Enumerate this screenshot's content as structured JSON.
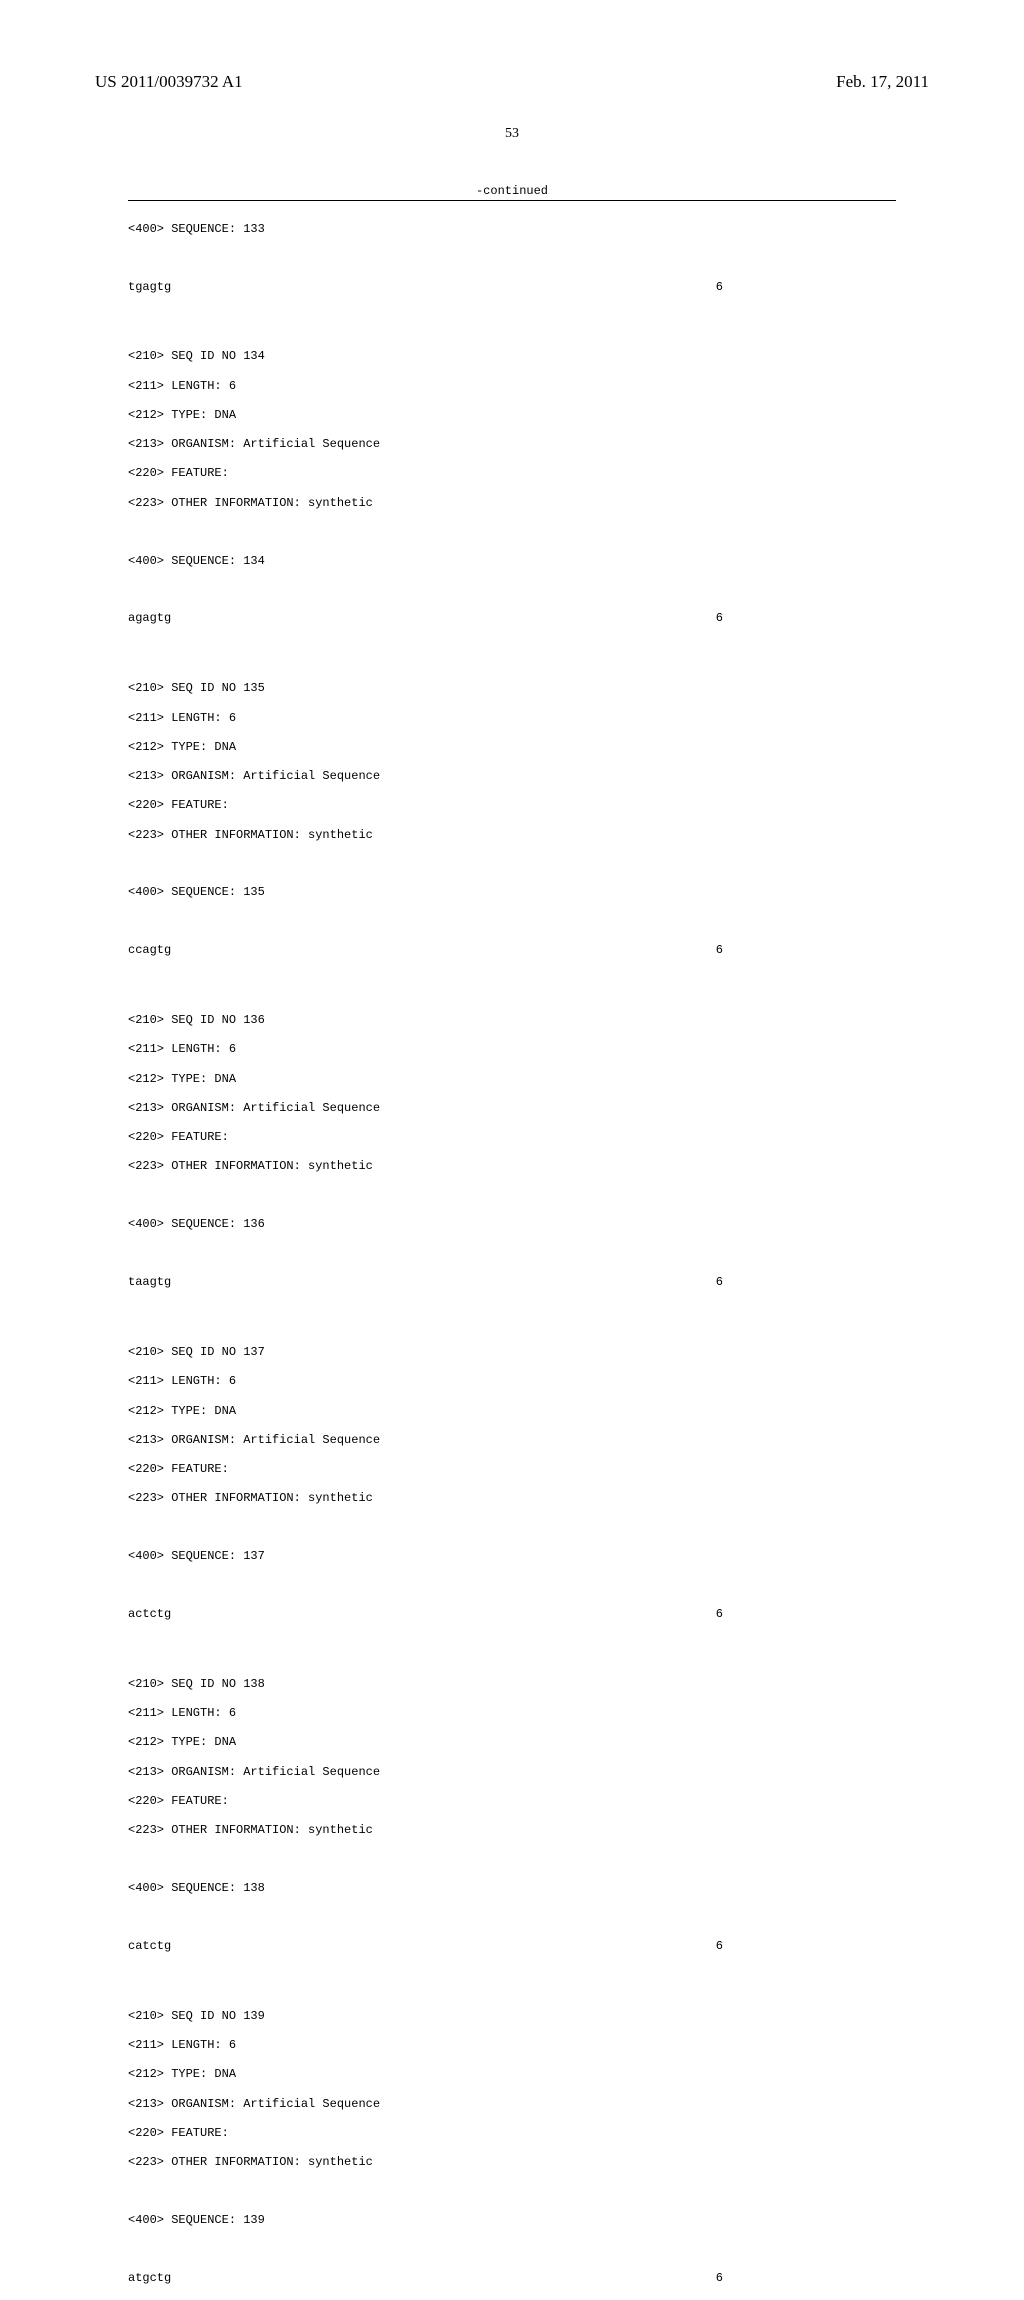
{
  "header": {
    "pub_number": "US 2011/0039732 A1",
    "pub_date": "Feb. 17, 2011"
  },
  "page_number": "53",
  "continued_label": "-continued",
  "entries": [
    {
      "pre_seq400": "<400> SEQUENCE: 133",
      "sequence": "tgagtg",
      "seq_len": "6",
      "header": [
        "<210> SEQ ID NO 134",
        "<211> LENGTH: 6",
        "<212> TYPE: DNA",
        "<213> ORGANISM: Artificial Sequence",
        "<220> FEATURE:",
        "<223> OTHER INFORMATION: synthetic"
      ],
      "seq400": "<400> SEQUENCE: 134",
      "next_sequence": "agagtg",
      "next_seq_len": "6"
    },
    {
      "header": [
        "<210> SEQ ID NO 135",
        "<211> LENGTH: 6",
        "<212> TYPE: DNA",
        "<213> ORGANISM: Artificial Sequence",
        "<220> FEATURE:",
        "<223> OTHER INFORMATION: synthetic"
      ],
      "seq400": "<400> SEQUENCE: 135",
      "next_sequence": "ccagtg",
      "next_seq_len": "6"
    },
    {
      "header": [
        "<210> SEQ ID NO 136",
        "<211> LENGTH: 6",
        "<212> TYPE: DNA",
        "<213> ORGANISM: Artificial Sequence",
        "<220> FEATURE:",
        "<223> OTHER INFORMATION: synthetic"
      ],
      "seq400": "<400> SEQUENCE: 136",
      "next_sequence": "taagtg",
      "next_seq_len": "6"
    },
    {
      "header": [
        "<210> SEQ ID NO 137",
        "<211> LENGTH: 6",
        "<212> TYPE: DNA",
        "<213> ORGANISM: Artificial Sequence",
        "<220> FEATURE:",
        "<223> OTHER INFORMATION: synthetic"
      ],
      "seq400": "<400> SEQUENCE: 137",
      "next_sequence": "actctg",
      "next_seq_len": "6"
    },
    {
      "header": [
        "<210> SEQ ID NO 138",
        "<211> LENGTH: 6",
        "<212> TYPE: DNA",
        "<213> ORGANISM: Artificial Sequence",
        "<220> FEATURE:",
        "<223> OTHER INFORMATION: synthetic"
      ],
      "seq400": "<400> SEQUENCE: 138",
      "next_sequence": "catctg",
      "next_seq_len": "6"
    },
    {
      "header": [
        "<210> SEQ ID NO 139",
        "<211> LENGTH: 6",
        "<212> TYPE: DNA",
        "<213> ORGANISM: Artificial Sequence",
        "<220> FEATURE:",
        "<223> OTHER INFORMATION: synthetic"
      ],
      "seq400": "<400> SEQUENCE: 139",
      "next_sequence": "atgctg",
      "next_seq_len": "6"
    }
  ]
}
